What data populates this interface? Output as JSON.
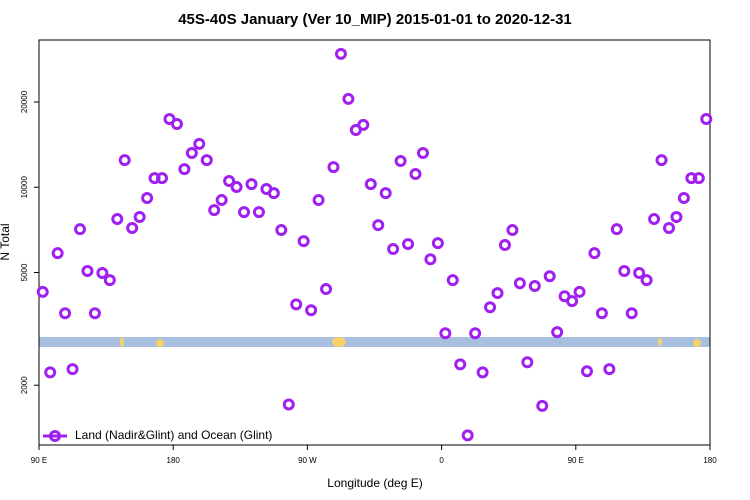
{
  "chart_data": {
    "type": "scatter",
    "title": "45S-40S January (Ver 10_MIP)   2015-01-01 to 2020-12-31",
    "x_label": "Longitude (deg E)",
    "y_label": "N Total",
    "log_y": true,
    "legend": "bottomleft",
    "xlim": [
      90,
      540
    ],
    "xticks": [
      {
        "value": 90,
        "label": "90 E"
      },
      {
        "value": 180,
        "label": "180"
      },
      {
        "value": 270,
        "label": "90 W"
      },
      {
        "value": 360,
        "label": "0"
      },
      {
        "value": 450,
        "label": "90 E"
      },
      {
        "value": 540,
        "label": "180"
      }
    ],
    "ylim": [
      1230,
      33100
    ],
    "yticks": [
      2000,
      5000,
      10000,
      20000
    ],
    "series": [
      {
        "name": "Land (Nadir&Glint) and Ocean (Glint)",
        "color": "#a020f0",
        "x": [
          92.5,
          97.5,
          102.5,
          107.5,
          112.5,
          117.5,
          122.5,
          127.5,
          132.5,
          137.5,
          142.5,
          147.5,
          152.5,
          157.5,
          162.5,
          167.5,
          172.5,
          177.5,
          182.5,
          187.5,
          192.5,
          197.5,
          202.5,
          207.5,
          212.5,
          217.5,
          222.5,
          227.5,
          232.5,
          237.5,
          242.5,
          247.5,
          252.5,
          257.5,
          262.5,
          267.5,
          272.5,
          277.5,
          282.5,
          287.5,
          292.5,
          297.5,
          302.5,
          307.5,
          312.5,
          317.5,
          322.5,
          327.5,
          332.5,
          337.5,
          342.5,
          347.5,
          352.5,
          357.5,
          362.5,
          367.5,
          372.5,
          377.5,
          382.5,
          387.5,
          392.5,
          397.5,
          402.5,
          407.5,
          412.5,
          417.5,
          422.5,
          427.5,
          432.5,
          437.5,
          442.5,
          447.5,
          452.5,
          457.5,
          462.5,
          467.5,
          472.5,
          477.5,
          482.5,
          487.5,
          492.5,
          497.5,
          502.5,
          507.5,
          512.5,
          517.5,
          522.5,
          527.5,
          532.5,
          537.5
        ],
        "values": [
          4270,
          2220,
          5850,
          3590,
          2280,
          7110,
          5060,
          3590,
          4980,
          4700,
          7720,
          12470,
          7180,
          7850,
          9160,
          10770,
          10770,
          17420,
          16720,
          11590,
          13210,
          14220,
          12470,
          8300,
          9010,
          10520,
          10020,
          8170,
          10260,
          8170,
          9860,
          9530,
          7060,
          1710,
          3860,
          6450,
          3680,
          9010,
          4370,
          11780,
          29570,
          20500,
          15920,
          16600,
          10260,
          7350,
          9530,
          6050,
          12380,
          6300,
          11140,
          13210,
          5570,
          6350,
          3050,
          4700,
          2370,
          1330,
          3050,
          2220,
          3770,
          4230,
          6250,
          7060,
          4580,
          2410,
          4480,
          1690,
          4850,
          3080,
          4120,
          3960,
          4270,
          2240,
          5850,
          3590,
          2280,
          7110,
          5060,
          3590,
          4980,
          4700,
          7720,
          12470,
          7180,
          7850,
          9160,
          10770,
          10770,
          17420
        ]
      }
    ]
  }
}
